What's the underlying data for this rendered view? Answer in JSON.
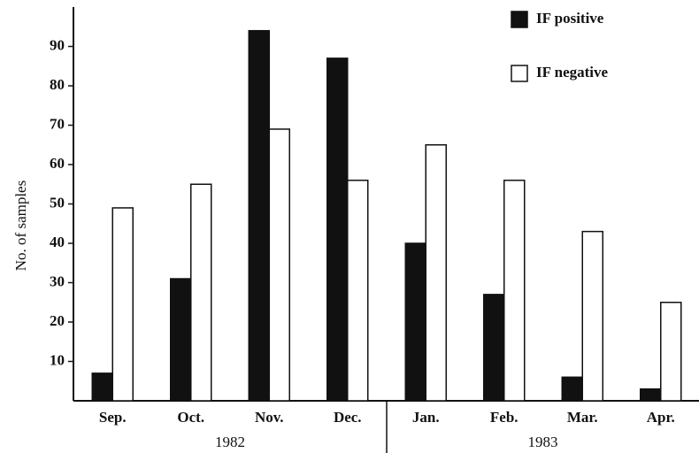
{
  "chart_data": {
    "type": "bar",
    "y_axis_label": "No. of samples",
    "categories": [
      "Sep.",
      "Oct.",
      "Nov.",
      "Dec.",
      "Jan.",
      "Feb.",
      "Mar.",
      "Apr."
    ],
    "groups": [
      {
        "label": "1982",
        "count": 4
      },
      {
        "label": "1983",
        "count": 4
      }
    ],
    "series": [
      {
        "name": "IF positive",
        "color": "#111111",
        "values": [
          7,
          31,
          94,
          87,
          40,
          27,
          6,
          3
        ]
      },
      {
        "name": "IF negative",
        "color": "#ffffff",
        "values": [
          49,
          55,
          69,
          56,
          65,
          56,
          43,
          25
        ]
      }
    ],
    "ylim": [
      0,
      100
    ],
    "yticks": [
      10,
      20,
      30,
      40,
      50,
      60,
      70,
      80,
      90
    ],
    "grid": false,
    "legend": "top-right"
  }
}
